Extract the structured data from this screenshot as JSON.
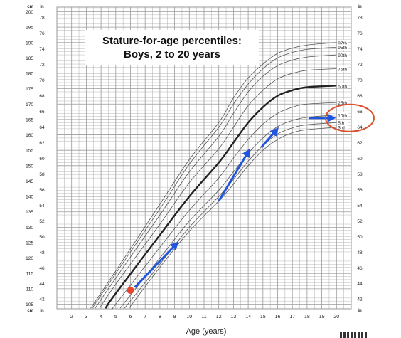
{
  "chart_data": {
    "type": "line",
    "title": "Stature-for-age percentiles:",
    "subtitle": "Boys, 2 to 20 years",
    "xlabel": "Age (years)",
    "xlim": [
      1,
      21
    ],
    "ylim_cm": [
      103.5,
      201.5
    ],
    "xticks": [
      2,
      3,
      4,
      5,
      6,
      7,
      8,
      9,
      10,
      11,
      12,
      13,
      14,
      15,
      16,
      17,
      18,
      19,
      20
    ],
    "y_cm_ticks": [
      105,
      110,
      115,
      120,
      125,
      130,
      135,
      140,
      145,
      150,
      155,
      160,
      165,
      170,
      175,
      180,
      185,
      190,
      195,
      200
    ],
    "y_in_ticks": [
      42,
      44,
      46,
      48,
      50,
      52,
      54,
      56,
      58,
      60,
      62,
      64,
      66,
      68,
      70,
      72,
      74,
      76,
      78
    ],
    "corner_labels": {
      "cm": "cm",
      "in": "in"
    },
    "series": [
      {
        "name": "97th",
        "x": [
          3.3,
          5,
          8,
          10,
          12,
          13,
          14,
          15,
          16,
          17,
          18,
          20
        ],
        "y": [
          103.7,
          115.8,
          137.5,
          152,
          164,
          172,
          178.5,
          183,
          186.5,
          188.2,
          189.2,
          190
        ]
      },
      {
        "name": "95th",
        "x": [
          3.4,
          5,
          8,
          10,
          12,
          13,
          14,
          15,
          16,
          17,
          18,
          20
        ],
        "y": [
          103.7,
          115,
          136,
          150.5,
          162.5,
          170,
          176.5,
          181.5,
          185,
          186.8,
          187.8,
          188.5
        ]
      },
      {
        "name": "90th",
        "x": [
          3.6,
          5,
          8,
          10,
          12,
          13,
          14,
          15,
          16,
          17,
          18,
          20
        ],
        "y": [
          103.7,
          113.5,
          134,
          148,
          159.5,
          167,
          174,
          179,
          182.5,
          184.3,
          185.3,
          186
        ]
      },
      {
        "name": "75th",
        "x": [
          3.9,
          5,
          8,
          10,
          12,
          13,
          14,
          15,
          16,
          17,
          18,
          20
        ],
        "y": [
          103.7,
          111.5,
          131,
          144.5,
          155.5,
          162.5,
          169.5,
          174.5,
          178.2,
          180,
          181,
          181.5
        ]
      },
      {
        "name": "50th",
        "x": [
          4.3,
          5,
          8,
          10,
          12,
          13,
          14,
          15,
          16,
          17,
          18,
          20
        ],
        "y": [
          103.7,
          108.5,
          127.5,
          140,
          151,
          157.5,
          164,
          169,
          172.7,
          174.5,
          175.5,
          176
        ]
      },
      {
        "name": "25th",
        "x": [
          4.8,
          5,
          8,
          10,
          12,
          13,
          14,
          15,
          16,
          17,
          18,
          20
        ],
        "y": [
          103.7,
          105,
          123.5,
          135.5,
          146,
          152.5,
          158.5,
          163.5,
          167,
          169,
          170,
          170.5
        ]
      },
      {
        "name": "10th",
        "x": [
          5.3,
          8,
          10,
          12,
          13,
          14,
          15,
          16,
          17,
          18,
          20
        ],
        "y": [
          103.7,
          120,
          132,
          142,
          148,
          154,
          159,
          162.7,
          164.7,
          165.7,
          166.5
        ]
      },
      {
        "name": "5th",
        "x": [
          5.6,
          8,
          10,
          12,
          13,
          14,
          15,
          16,
          17,
          18,
          20
        ],
        "y": [
          103.7,
          118,
          130,
          140,
          145.5,
          151.5,
          156.5,
          160.3,
          162.3,
          163.3,
          164
        ]
      },
      {
        "name": "3rd",
        "x": [
          5.9,
          8,
          10,
          12,
          13,
          14,
          15,
          16,
          17,
          18,
          20
        ],
        "y": [
          103.7,
          117,
          128.7,
          138.5,
          144,
          150,
          155,
          158.5,
          160.7,
          161.7,
          162.5
        ]
      }
    ],
    "marker": {
      "x": 6,
      "y": 109.5,
      "color": "#e8452c"
    },
    "arrows": [
      {
        "x1": 6.3,
        "y1": 110.5,
        "x2": 9.1,
        "y2": 124.5
      },
      {
        "x1": 12.0,
        "y1": 138.5,
        "x2": 14.0,
        "y2": 154.5
      },
      {
        "x1": 14.9,
        "y1": 156.0,
        "x2": 15.9,
        "y2": 161.5
      },
      {
        "x1": 18.1,
        "y1": 165.5,
        "x2": 19.7,
        "y2": 165.5
      }
    ],
    "highlight_circle": {
      "x": 20.9,
      "y": 165.5,
      "color": "#d9512c"
    },
    "colors": {
      "grid": "#9a9a9a",
      "curve": "#555555",
      "median": "#222222",
      "arrow": "#2255dd"
    }
  }
}
